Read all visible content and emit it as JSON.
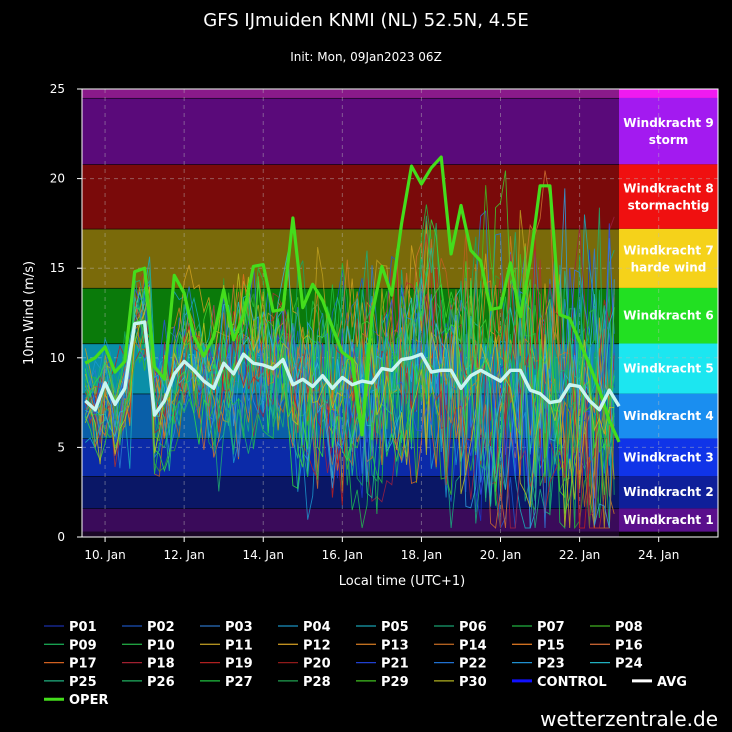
{
  "chart_data": {
    "type": "line",
    "title": "GFS IJmuiden KNMI (NL) 52.5N, 4.5E",
    "subtitle": "Init: Mon, 09Jan2023 06Z",
    "xlabel": "Local time (UTC+1)",
    "ylabel": "10m Wind (m/s)",
    "ylim": [
      0,
      25
    ],
    "xlim": [
      "2023-01-09T10:00",
      "2023-01-25T12:00"
    ],
    "yticks": [
      0,
      5,
      10,
      15,
      20,
      25
    ],
    "xticks": [
      {
        "date": "2023-01-10",
        "label": "10. Jan"
      },
      {
        "date": "2023-01-12",
        "label": "12. Jan"
      },
      {
        "date": "2023-01-14",
        "label": "14. Jan"
      },
      {
        "date": "2023-01-16",
        "label": "16. Jan"
      },
      {
        "date": "2023-01-18",
        "label": "18. Jan"
      },
      {
        "date": "2023-01-20",
        "label": "20. Jan"
      },
      {
        "date": "2023-01-22",
        "label": "22. Jan"
      },
      {
        "date": "2023-01-24",
        "label": "24. Jan"
      }
    ],
    "grid": true,
    "bands": [
      {
        "from": 0.3,
        "to": 1.6,
        "color": "#3a0b5a",
        "label_color": "#5a0f8c",
        "label": "Windkracht 1",
        "sub": ""
      },
      {
        "from": 1.6,
        "to": 3.4,
        "color": "#0a1766",
        "label_color": "#0f1f99",
        "label": "Windkracht 2",
        "sub": ""
      },
      {
        "from": 3.4,
        "to": 5.5,
        "color": "#0b2aa8",
        "label_color": "#1034e8",
        "label": "Windkracht 3",
        "sub": ""
      },
      {
        "from": 5.5,
        "to": 8.0,
        "color": "#0a5fa8",
        "label_color": "#1a8ef0",
        "label": "Windkracht 4",
        "sub": ""
      },
      {
        "from": 8.0,
        "to": 10.8,
        "color": "#0a8fa8",
        "label_color": "#1ce6f0",
        "label": "Windkracht 5",
        "sub": ""
      },
      {
        "from": 10.8,
        "to": 13.9,
        "color": "#0a7a0a",
        "label_color": "#22e022",
        "label": "Windkracht 6",
        "sub": ""
      },
      {
        "from": 13.9,
        "to": 17.2,
        "color": "#7a6a0a",
        "label_color": "#f5d21a",
        "label": "Windkracht 7",
        "sub": "harde wind"
      },
      {
        "from": 17.2,
        "to": 20.8,
        "color": "#7a0a0a",
        "label_color": "#f01010",
        "label": "Windkracht 8",
        "sub": "stormachtig"
      },
      {
        "from": 20.8,
        "to": 24.5,
        "color": "#5a0a7a",
        "label_color": "#a31af0",
        "label": "Windkracht 9",
        "sub": "storm"
      },
      {
        "from": 24.5,
        "to": 25.0,
        "color": "#8a1a8a",
        "label_color": "#f01af0",
        "label": "",
        "sub": ""
      }
    ],
    "oper": {
      "name": "OPER",
      "color": "#44dd1c",
      "points": [
        [
          "2023-01-09T12:00",
          9.7
        ],
        [
          "2023-01-09T18:00",
          10.0
        ],
        [
          "2023-01-10T00:00",
          10.6
        ],
        [
          "2023-01-10T06:00",
          9.2
        ],
        [
          "2023-01-10T12:00",
          9.8
        ],
        [
          "2023-01-10T18:00",
          14.8
        ],
        [
          "2023-01-11T00:00",
          15.0
        ],
        [
          "2023-01-11T06:00",
          9.5
        ],
        [
          "2023-01-11T12:00",
          8.8
        ],
        [
          "2023-01-11T18:00",
          14.6
        ],
        [
          "2023-01-12T00:00",
          13.6
        ],
        [
          "2023-01-12T06:00",
          11.2
        ],
        [
          "2023-01-12T12:00",
          10.1
        ],
        [
          "2023-01-12T18:00",
          11.2
        ],
        [
          "2023-01-13T00:00",
          13.8
        ],
        [
          "2023-01-13T06:00",
          11.0
        ],
        [
          "2023-01-13T12:00",
          12.4
        ],
        [
          "2023-01-13T18:00",
          15.1
        ],
        [
          "2023-01-14T00:00",
          15.2
        ],
        [
          "2023-01-14T06:00",
          12.6
        ],
        [
          "2023-01-14T12:00",
          12.7
        ],
        [
          "2023-01-14T18:00",
          17.8
        ],
        [
          "2023-01-15T00:00",
          12.8
        ],
        [
          "2023-01-15T06:00",
          14.1
        ],
        [
          "2023-01-15T12:00",
          13.2
        ],
        [
          "2023-01-15T18:00",
          11.7
        ],
        [
          "2023-01-16T00:00",
          10.3
        ],
        [
          "2023-01-16T06:00",
          9.9
        ],
        [
          "2023-01-16T12:00",
          5.7
        ],
        [
          "2023-01-16T18:00",
          12.4
        ],
        [
          "2023-01-17T00:00",
          15.1
        ],
        [
          "2023-01-17T06:00",
          13.5
        ],
        [
          "2023-01-17T12:00",
          17.5
        ],
        [
          "2023-01-17T18:00",
          20.7
        ],
        [
          "2023-01-18T00:00",
          19.7
        ],
        [
          "2023-01-18T06:00",
          20.6
        ],
        [
          "2023-01-18T12:00",
          21.2
        ],
        [
          "2023-01-18T18:00",
          15.8
        ],
        [
          "2023-01-19T00:00",
          18.5
        ],
        [
          "2023-01-19T06:00",
          16.0
        ],
        [
          "2023-01-19T12:00",
          15.4
        ],
        [
          "2023-01-19T18:00",
          12.7
        ],
        [
          "2023-01-20T00:00",
          12.8
        ],
        [
          "2023-01-20T06:00",
          15.3
        ],
        [
          "2023-01-20T12:00",
          12.3
        ],
        [
          "2023-01-20T18:00",
          15.4
        ],
        [
          "2023-01-21T00:00",
          19.6
        ],
        [
          "2023-01-21T06:00",
          19.6
        ],
        [
          "2023-01-21T12:00",
          12.4
        ],
        [
          "2023-01-21T18:00",
          12.2
        ],
        [
          "2023-01-22T00:00",
          10.9
        ],
        [
          "2023-01-22T06:00",
          9.6
        ],
        [
          "2023-01-22T12:00",
          8.2
        ],
        [
          "2023-01-22T18:00",
          6.5
        ],
        [
          "2023-01-23T00:00",
          5.3
        ]
      ]
    },
    "avg": {
      "name": "AVG",
      "color": "#c8f5f0",
      "points": [
        [
          "2023-01-09T12:00",
          7.6
        ],
        [
          "2023-01-09T18:00",
          7.1
        ],
        [
          "2023-01-10T00:00",
          8.6
        ],
        [
          "2023-01-10T06:00",
          7.4
        ],
        [
          "2023-01-10T12:00",
          8.3
        ],
        [
          "2023-01-10T18:00",
          11.9
        ],
        [
          "2023-01-11T00:00",
          12.0
        ],
        [
          "2023-01-11T06:00",
          6.8
        ],
        [
          "2023-01-11T12:00",
          7.6
        ],
        [
          "2023-01-11T18:00",
          9.1
        ],
        [
          "2023-01-12T00:00",
          9.8
        ],
        [
          "2023-01-12T06:00",
          9.3
        ],
        [
          "2023-01-12T12:00",
          8.7
        ],
        [
          "2023-01-12T18:00",
          8.3
        ],
        [
          "2023-01-13T00:00",
          9.7
        ],
        [
          "2023-01-13T06:00",
          9.1
        ],
        [
          "2023-01-13T12:00",
          10.2
        ],
        [
          "2023-01-13T18:00",
          9.7
        ],
        [
          "2023-01-14T00:00",
          9.6
        ],
        [
          "2023-01-14T06:00",
          9.4
        ],
        [
          "2023-01-14T12:00",
          9.9
        ],
        [
          "2023-01-14T18:00",
          8.5
        ],
        [
          "2023-01-15T00:00",
          8.8
        ],
        [
          "2023-01-15T06:00",
          8.4
        ],
        [
          "2023-01-15T12:00",
          9.0
        ],
        [
          "2023-01-15T18:00",
          8.3
        ],
        [
          "2023-01-16T00:00",
          8.9
        ],
        [
          "2023-01-16T06:00",
          8.5
        ],
        [
          "2023-01-16T12:00",
          8.7
        ],
        [
          "2023-01-16T18:00",
          8.6
        ],
        [
          "2023-01-17T00:00",
          9.4
        ],
        [
          "2023-01-17T06:00",
          9.3
        ],
        [
          "2023-01-17T12:00",
          9.9
        ],
        [
          "2023-01-17T18:00",
          10.0
        ],
        [
          "2023-01-18T00:00",
          10.2
        ],
        [
          "2023-01-18T06:00",
          9.2
        ],
        [
          "2023-01-18T12:00",
          9.3
        ],
        [
          "2023-01-18T18:00",
          9.3
        ],
        [
          "2023-01-19T00:00",
          8.3
        ],
        [
          "2023-01-19T06:00",
          9.0
        ],
        [
          "2023-01-19T12:00",
          9.3
        ],
        [
          "2023-01-19T18:00",
          9.0
        ],
        [
          "2023-01-20T00:00",
          8.7
        ],
        [
          "2023-01-20T06:00",
          9.3
        ],
        [
          "2023-01-20T12:00",
          9.3
        ],
        [
          "2023-01-20T18:00",
          8.2
        ],
        [
          "2023-01-21T00:00",
          8.0
        ],
        [
          "2023-01-21T06:00",
          7.5
        ],
        [
          "2023-01-21T12:00",
          7.6
        ],
        [
          "2023-01-21T18:00",
          8.5
        ],
        [
          "2023-01-22T00:00",
          8.4
        ],
        [
          "2023-01-22T06:00",
          7.6
        ],
        [
          "2023-01-22T12:00",
          7.1
        ],
        [
          "2023-01-22T18:00",
          8.2
        ],
        [
          "2023-01-23T00:00",
          7.3
        ]
      ]
    },
    "ensemble_colors": [
      "#1a3acc",
      "#1a5acc",
      "#2a7ad0",
      "#1a9ad0",
      "#18b0c0",
      "#18b080",
      "#20c040",
      "#40c020",
      "#30a030",
      "#18a860",
      "#c0a020",
      "#d0a020",
      "#d08020",
      "#c06020",
      "#e07020",
      "#d07030",
      "#b03030",
      "#a02040",
      "#c02020",
      "#3050e0",
      "#3080e0",
      "#30a0e0",
      "#30c0d0",
      "#20c090",
      "#20b070",
      "#20c050",
      "#40d030",
      "#30e040",
      "#c0c020"
    ],
    "legend": [
      {
        "name": "P01",
        "color": "#1a2fa8"
      },
      {
        "name": "P02",
        "color": "#1a4fb8"
      },
      {
        "name": "P03",
        "color": "#2a6fc0"
      },
      {
        "name": "P04",
        "color": "#1a8fc0"
      },
      {
        "name": "P05",
        "color": "#18a0b0"
      },
      {
        "name": "P06",
        "color": "#18a070"
      },
      {
        "name": "P07",
        "color": "#20b040"
      },
      {
        "name": "P08",
        "color": "#40b020"
      },
      {
        "name": "P09",
        "color": "#18a050"
      },
      {
        "name": "P10",
        "color": "#20a040"
      },
      {
        "name": "P11",
        "color": "#b09020"
      },
      {
        "name": "P12",
        "color": "#c09020"
      },
      {
        "name": "P13",
        "color": "#c07020"
      },
      {
        "name": "P14",
        "color": "#b06020"
      },
      {
        "name": "P15",
        "color": "#d07020"
      },
      {
        "name": "P16",
        "color": "#c06030"
      },
      {
        "name": "P17",
        "color": "#d06020"
      },
      {
        "name": "P18",
        "color": "#a02030"
      },
      {
        "name": "P19",
        "color": "#b02020"
      },
      {
        "name": "P20",
        "color": "#901a1a"
      },
      {
        "name": "P21",
        "color": "#2040d0"
      },
      {
        "name": "P22",
        "color": "#2070d0"
      },
      {
        "name": "P23",
        "color": "#2090d0"
      },
      {
        "name": "P24",
        "color": "#20b0c0"
      },
      {
        "name": "P25",
        "color": "#20b080"
      },
      {
        "name": "P26",
        "color": "#20b060"
      },
      {
        "name": "P27",
        "color": "#20c040"
      },
      {
        "name": "P28",
        "color": "#20a050"
      },
      {
        "name": "P29",
        "color": "#40c020"
      },
      {
        "name": "P30",
        "color": "#b0b020"
      },
      {
        "name": "CONTROL",
        "color": "#1010ff"
      },
      {
        "name": "AVG",
        "color": "#ffffff"
      },
      {
        "name": "OPER",
        "color": "#44dd1c"
      }
    ],
    "source": "wetterzentrale.de"
  }
}
